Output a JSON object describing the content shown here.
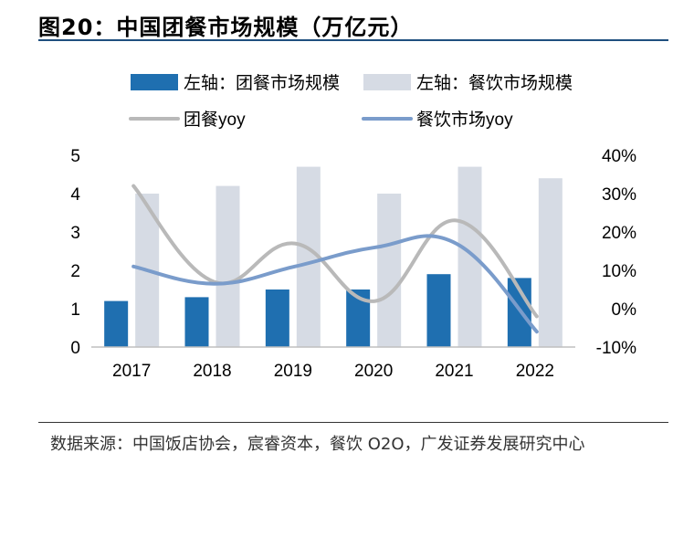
{
  "title": "图20：中国团餐市场规模（万亿元）",
  "source": "数据来源：中国饭店协会，宸睿资本，餐饮 O2O，广发证券发展研究中心",
  "colors": {
    "group_bar": "#1f6fb0",
    "catering_bar": "#d6dbe4",
    "group_yoy": "#b9b9b9",
    "catering_yoy": "#7a9ccb"
  },
  "chart_data": {
    "type": "bar",
    "categories": [
      "2017",
      "2018",
      "2019",
      "2020",
      "2021",
      "2022"
    ],
    "series": [
      {
        "name": "左轴：团餐市场规模",
        "kind": "bar",
        "axis": "left",
        "values": [
          1.2,
          1.3,
          1.5,
          1.5,
          1.9,
          1.8
        ]
      },
      {
        "name": "左轴：餐饮市场规模",
        "kind": "bar",
        "axis": "left",
        "values": [
          4.0,
          4.2,
          4.7,
          4.0,
          4.7,
          4.4
        ]
      },
      {
        "name": "团餐yoy",
        "kind": "line",
        "axis": "right",
        "values": [
          32,
          7,
          17,
          2,
          23,
          -2
        ]
      },
      {
        "name": "餐饮市场yoy",
        "kind": "line",
        "axis": "right",
        "values": [
          11,
          6.5,
          11,
          16,
          17,
          -6
        ]
      }
    ],
    "ylim_left": [
      0,
      5
    ],
    "ylim_right": [
      -10,
      40
    ],
    "yticks_left": [
      "0",
      "1",
      "2",
      "3",
      "4",
      "5"
    ],
    "yticks_right": [
      "-10%",
      "0%",
      "10%",
      "20%",
      "30%",
      "40%"
    ],
    "legend_position": "top",
    "grid": false
  }
}
